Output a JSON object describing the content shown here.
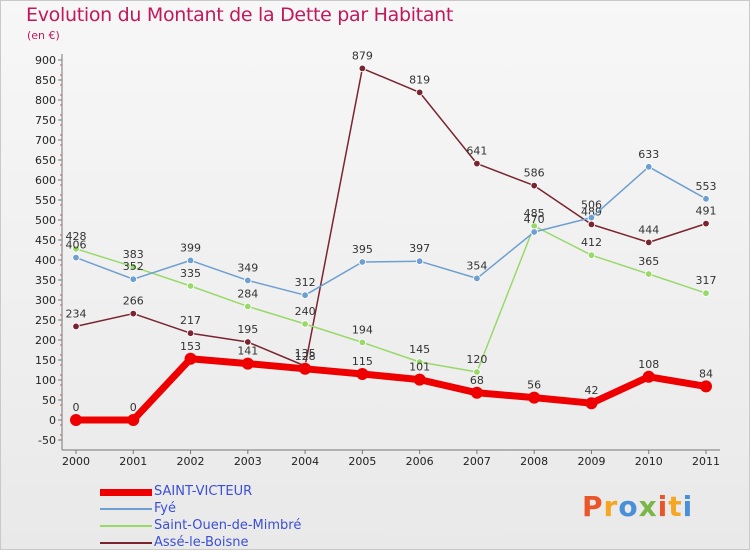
{
  "title": "Evolution du Montant de la Dette par Habitant",
  "subtitle": "(en €)",
  "logo": {
    "text": "Proxiti",
    "colors": [
      "#e8562a",
      "#f5a623",
      "#4a90d9",
      "#7ab648",
      "#e8562a",
      "#f5a623",
      "#4a90d9"
    ]
  },
  "chart_data": {
    "type": "line",
    "x": [
      "2000",
      "2001",
      "2002",
      "2003",
      "2004",
      "2005",
      "2006",
      "2007",
      "2008",
      "2009",
      "2010",
      "2011"
    ],
    "ylim": [
      -50,
      900
    ],
    "yticks": [
      -50,
      0,
      50,
      100,
      150,
      200,
      250,
      300,
      350,
      400,
      450,
      500,
      550,
      600,
      650,
      700,
      750,
      800,
      850,
      900
    ],
    "grid": false,
    "legend": "bottom-left",
    "series": [
      {
        "name": "Assé-le-Boisne",
        "color": "#7a2430",
        "width": 1.5,
        "values": [
          234,
          266,
          217,
          195,
          135,
          879,
          819,
          641,
          586,
          489,
          444,
          491
        ]
      },
      {
        "name": "Saint-Ouen-de-Mimbré",
        "color": "#98d96a",
        "width": 1.5,
        "values": [
          428,
          383,
          335,
          284,
          240,
          194,
          145,
          120,
          485,
          412,
          365,
          317
        ]
      },
      {
        "name": "Fyé",
        "color": "#6d9fd0",
        "width": 1.5,
        "values": [
          406,
          352,
          399,
          349,
          312,
          395,
          397,
          354,
          470,
          506,
          633,
          553
        ]
      },
      {
        "name": "SAINT-VICTEUR",
        "color": "#ee0000",
        "width": 7,
        "values": [
          0,
          0,
          153,
          141,
          128,
          115,
          101,
          68,
          56,
          42,
          108,
          84
        ]
      }
    ]
  },
  "legend": [
    {
      "name": "SAINT-VICTEUR",
      "color": "#ee0000",
      "thickness": 7
    },
    {
      "name": "Fyé",
      "color": "#6d9fd0",
      "thickness": 2
    },
    {
      "name": "Saint-Ouen-de-Mimbré",
      "color": "#98d96a",
      "thickness": 2
    },
    {
      "name": "Assé-le-Boisne",
      "color": "#7a2430",
      "thickness": 2
    }
  ]
}
